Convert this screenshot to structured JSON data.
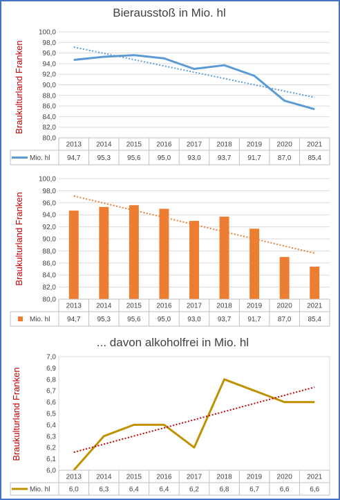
{
  "chart_data": [
    {
      "type": "line",
      "title": "Bierausstoß in Mio. hl",
      "ylabel": "Braukulturland Franken",
      "ylim": [
        80.0,
        100.0
      ],
      "yticks": [
        "100,0",
        "98,0",
        "96,0",
        "94,0",
        "92,0",
        "90,0",
        "88,0",
        "86,0",
        "84,0",
        "82,0",
        "80,0"
      ],
      "categories": [
        "2013",
        "2014",
        "2015",
        "2016",
        "2017",
        "2018",
        "2019",
        "2020",
        "2021"
      ],
      "series": [
        {
          "name": "Mio. hl",
          "values": [
            94.7,
            95.3,
            95.6,
            95.0,
            93.0,
            93.7,
            91.7,
            87.0,
            85.4
          ],
          "labels": [
            "94,7",
            "95,3",
            "95,6",
            "95,0",
            "93,0",
            "93,7",
            "91,7",
            "87,0",
            "85,4"
          ],
          "color": "#5b9bd5"
        }
      ],
      "trendline": {
        "type": "linear",
        "color": "#5b9bd5",
        "style": "dotted"
      },
      "grid": true,
      "data_table": true
    },
    {
      "type": "bar",
      "title": "",
      "ylabel": "Braukulturland Franken",
      "ylim": [
        80.0,
        100.0
      ],
      "yticks": [
        "100,0",
        "98,0",
        "96,0",
        "94,0",
        "92,0",
        "90,0",
        "88,0",
        "86,0",
        "84,0",
        "82,0",
        "80,0"
      ],
      "categories": [
        "2013",
        "2014",
        "2015",
        "2016",
        "2017",
        "2018",
        "2019",
        "2020",
        "2021"
      ],
      "series": [
        {
          "name": "Mio. hl",
          "values": [
            94.7,
            95.3,
            95.6,
            95.0,
            93.0,
            93.7,
            91.7,
            87.0,
            85.4
          ],
          "labels": [
            "94,7",
            "95,3",
            "95,6",
            "95,0",
            "93,0",
            "93,7",
            "91,7",
            "87,0",
            "85,4"
          ],
          "color": "#ed7d31"
        }
      ],
      "trendline": {
        "type": "linear",
        "color": "#ed7d31",
        "style": "dotted"
      },
      "grid": true,
      "data_table": true
    },
    {
      "type": "line",
      "title": "... davon alkoholfrei in Mio. hl",
      "ylabel": "Braukulturland Franken",
      "ylim": [
        6.0,
        7.0
      ],
      "yticks": [
        "7,0",
        "6,9",
        "6,8",
        "6,7",
        "6,6",
        "6,5",
        "6,4",
        "6,3",
        "6,2",
        "6,1",
        "6,0"
      ],
      "categories": [
        "2013",
        "2014",
        "2015",
        "2016",
        "2017",
        "2018",
        "2019",
        "2020",
        "2021"
      ],
      "series": [
        {
          "name": "Mio. hl",
          "values": [
            6.0,
            6.3,
            6.4,
            6.4,
            6.2,
            6.8,
            6.7,
            6.6,
            6.6
          ],
          "labels": [
            "6,0",
            "6,3",
            "6,4",
            "6,4",
            "6,2",
            "6,8",
            "6,7",
            "6,6",
            "6,6"
          ],
          "color": "#bf9000"
        }
      ],
      "trendline": {
        "type": "linear",
        "color": "#c00000",
        "style": "dotted"
      },
      "grid": false,
      "data_table": true
    }
  ]
}
